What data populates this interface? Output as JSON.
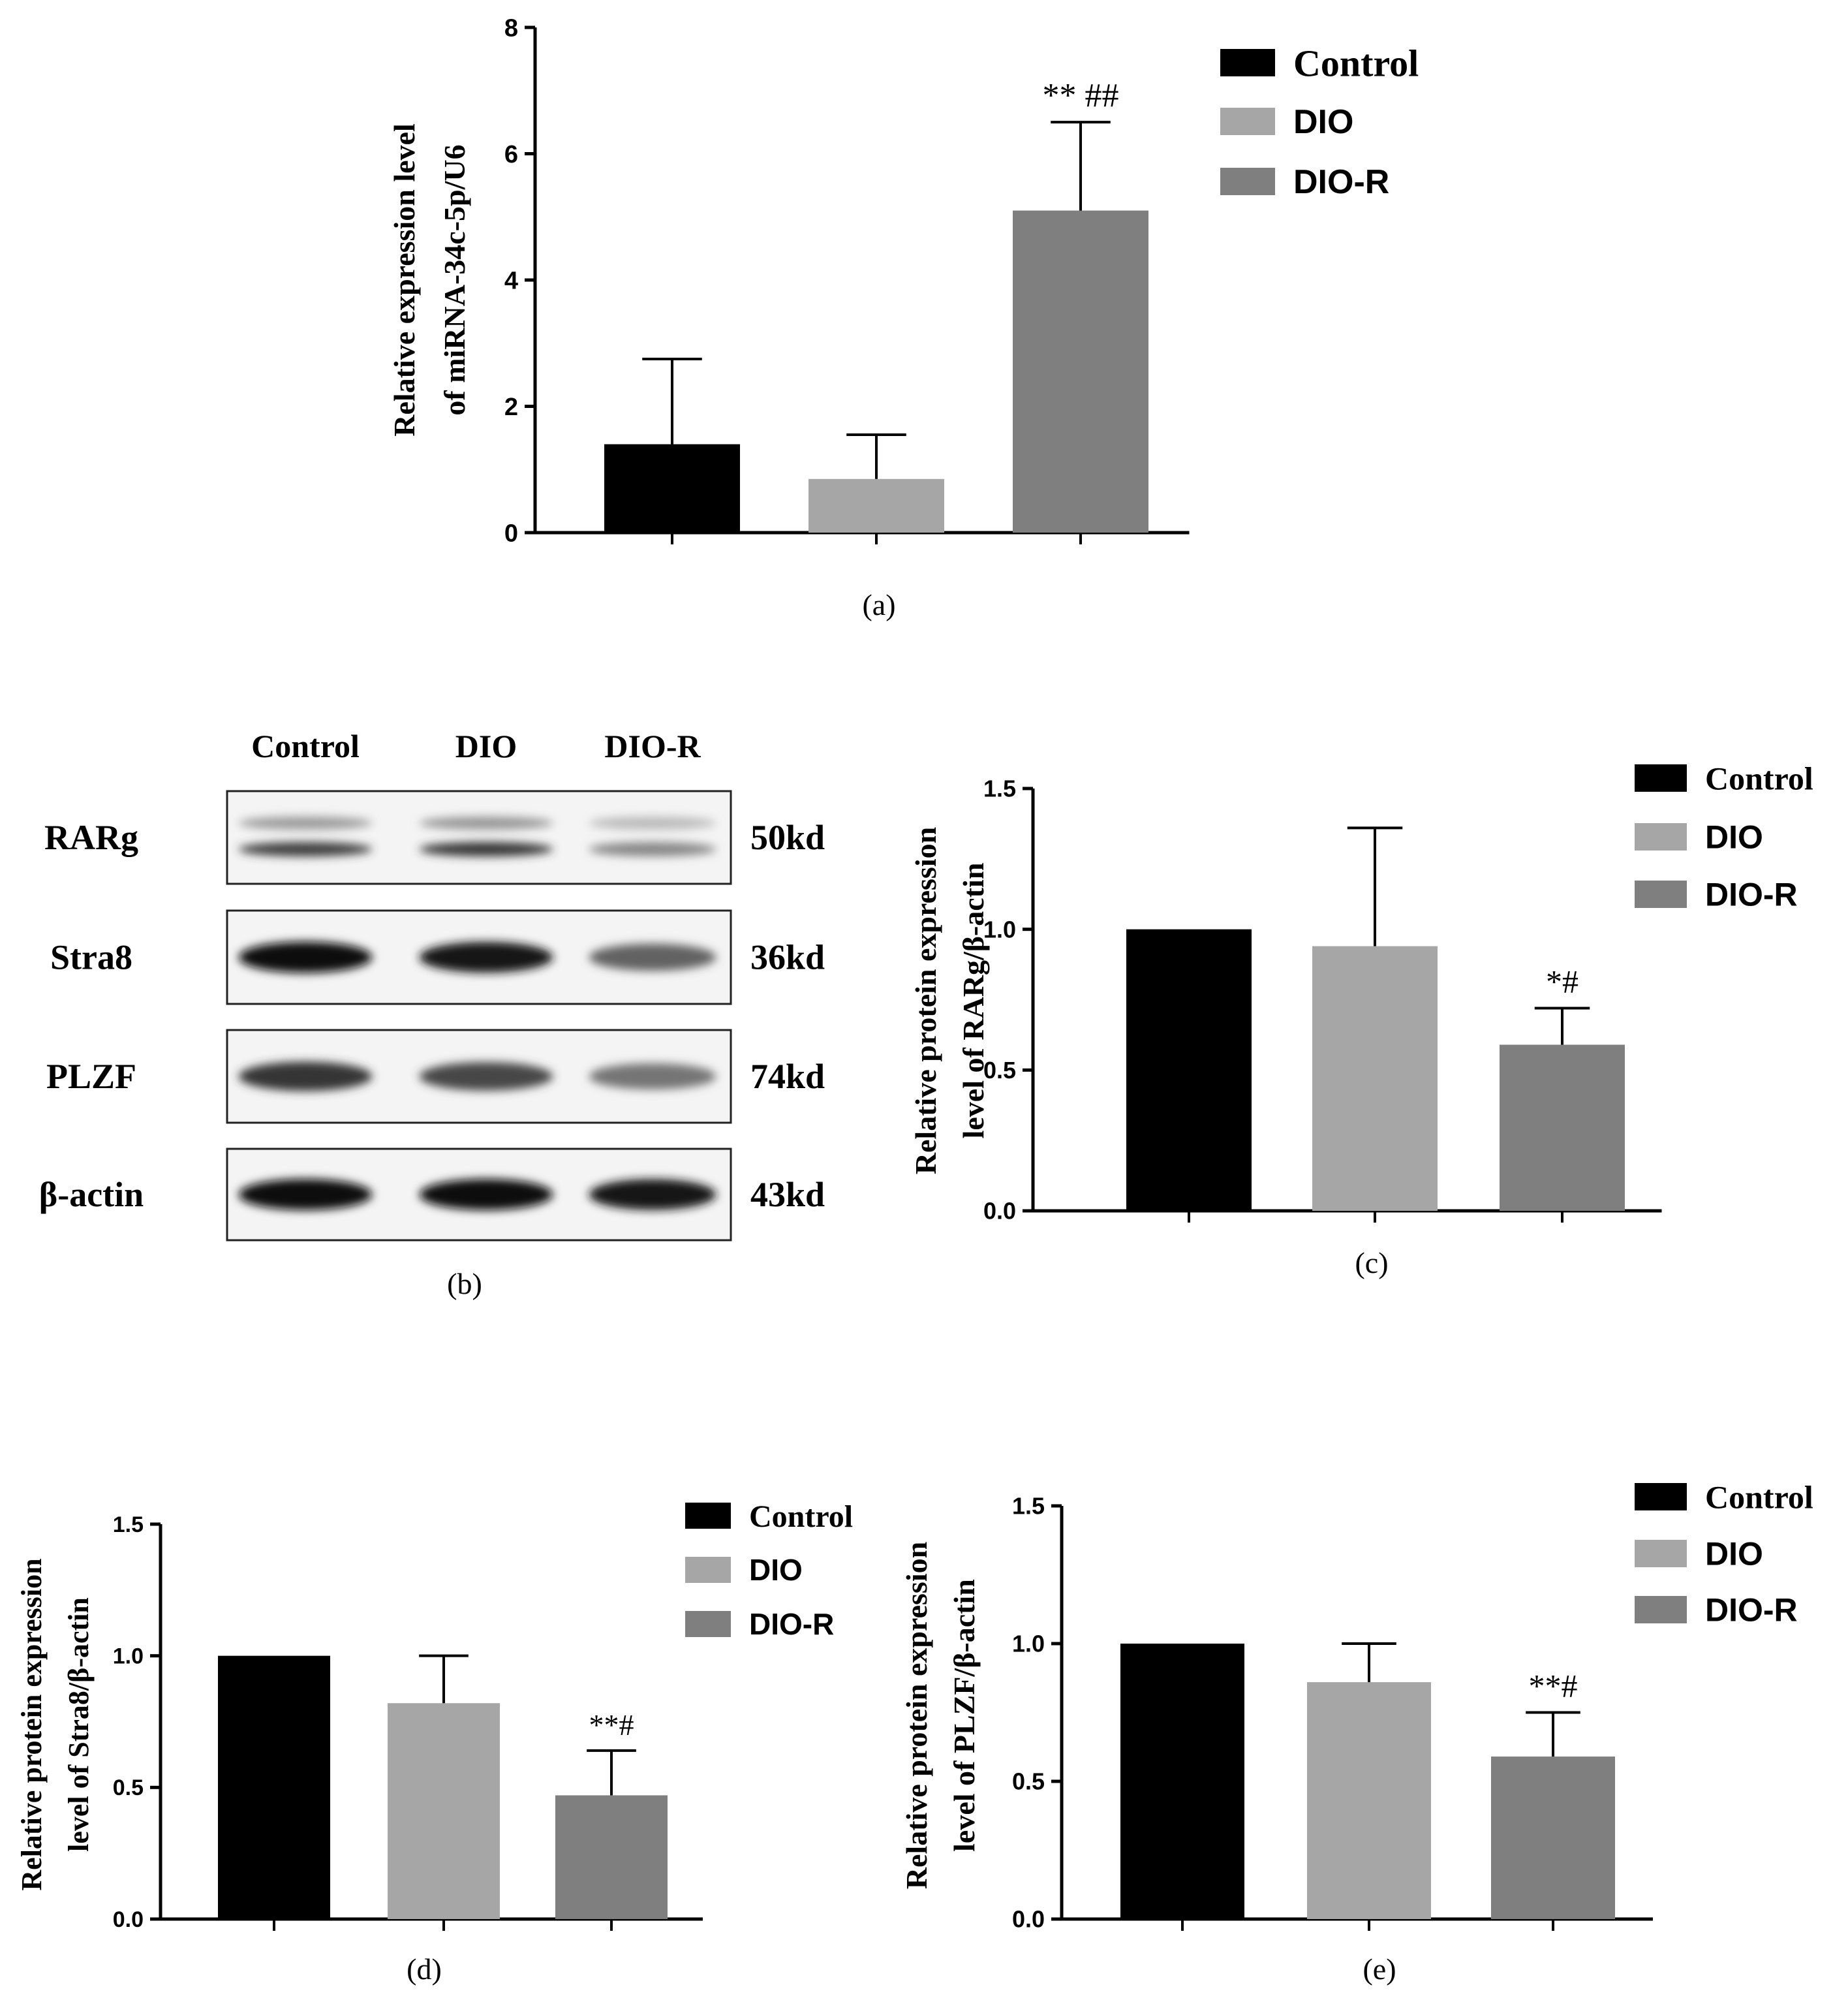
{
  "colors": {
    "control": "#000000",
    "dio": "#a6a6a6",
    "dio_r": "#7f7f7f"
  },
  "blot": {
    "panel_label": "(b)",
    "lanes": [
      "Control",
      "DIO",
      "DIO-R"
    ],
    "rows": [
      {
        "protein": "RARg",
        "size": "50kd",
        "intensity": [
          0.75,
          0.8,
          0.35
        ]
      },
      {
        "protein": "Stra8",
        "size": "36kd",
        "intensity": [
          1.0,
          0.95,
          0.55
        ]
      },
      {
        "protein": "PLZF",
        "size": "74kd",
        "intensity": [
          0.8,
          0.7,
          0.45
        ]
      },
      {
        "protein": "β-actin",
        "size": "43kd",
        "intensity": [
          1.0,
          1.0,
          0.95
        ]
      }
    ]
  },
  "chart_data": [
    {
      "id": "a",
      "type": "bar",
      "panel_label": "(a)",
      "ylabel_lines": [
        "Relative  expression level",
        "of miRNA-34c-5p/U6"
      ],
      "ylim": [
        0,
        8
      ],
      "yticks": [
        "0",
        "2",
        "4",
        "6",
        "8"
      ],
      "categories": [
        "Control",
        "DIO",
        "DIO-R"
      ],
      "values": [
        1.4,
        0.85,
        5.1
      ],
      "errors": [
        1.35,
        0.7,
        1.4
      ],
      "annotations": [
        "",
        "",
        "** ##"
      ],
      "legend": [
        "Control",
        "DIO",
        "DIO-R"
      ]
    },
    {
      "id": "c",
      "type": "bar",
      "panel_label": "(c)",
      "ylabel_lines": [
        "Relative protein expression",
        "level of RARg/β-actin"
      ],
      "ylim": [
        0,
        1.5
      ],
      "yticks": [
        "0.0",
        "0.5",
        "1.0",
        "1.5"
      ],
      "categories": [
        "Control",
        "DIO",
        "DIO-R"
      ],
      "values": [
        1.0,
        0.94,
        0.59
      ],
      "errors": [
        0,
        0.42,
        0.13
      ],
      "annotations": [
        "",
        "",
        "*#"
      ],
      "legend": [
        "Control",
        "DIO",
        "DIO-R"
      ]
    },
    {
      "id": "d",
      "type": "bar",
      "panel_label": "(d)",
      "ylabel_lines": [
        "Relative protein expression",
        "level of Stra8/β-actin"
      ],
      "ylim": [
        0,
        1.5
      ],
      "yticks": [
        "0.0",
        "0.5",
        "1.0",
        "1.5"
      ],
      "categories": [
        "Control",
        "DIO",
        "DIO-R"
      ],
      "values": [
        1.0,
        0.82,
        0.47
      ],
      "errors": [
        0,
        0.18,
        0.17
      ],
      "annotations": [
        "",
        "",
        "**#"
      ],
      "legend": [
        "Control",
        "DIO",
        "DIO-R"
      ]
    },
    {
      "id": "e",
      "type": "bar",
      "panel_label": "(e)",
      "ylabel_lines": [
        "Relative protein expression",
        "level of PLZF/β-actin"
      ],
      "ylim": [
        0,
        1.5
      ],
      "yticks": [
        "0.0",
        "0.5",
        "1.0",
        "1.5"
      ],
      "categories": [
        "Control",
        "DIO",
        "DIO-R"
      ],
      "values": [
        1.0,
        0.86,
        0.59
      ],
      "errors": [
        0,
        0.14,
        0.16
      ],
      "annotations": [
        "",
        "",
        "**#"
      ],
      "legend": [
        "Control",
        "DIO",
        "DIO-R"
      ]
    }
  ]
}
